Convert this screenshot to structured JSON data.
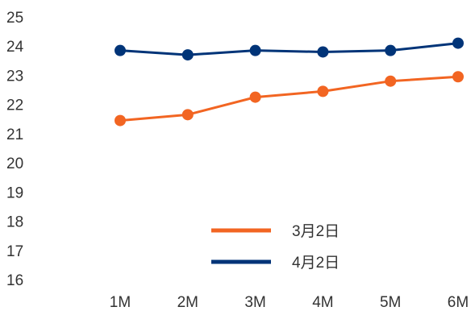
{
  "chart_data": {
    "type": "line",
    "title": "",
    "xlabel": "",
    "ylabel": "",
    "categories": [
      "1M",
      "2M",
      "3M",
      "4M",
      "5M",
      "6M"
    ],
    "y_ticks": [
      16,
      17,
      18,
      19,
      20,
      21,
      22,
      23,
      24,
      25
    ],
    "ylim": [
      16,
      25
    ],
    "grid": false,
    "legend_position": "bottom-center",
    "series": [
      {
        "name": "3月2日",
        "color": "#F26522",
        "values": [
          21.45,
          21.65,
          22.25,
          22.45,
          22.8,
          22.95
        ]
      },
      {
        "name": "4月2日",
        "color": "#003478",
        "values": [
          23.85,
          23.7,
          23.85,
          23.8,
          23.85,
          24.1
        ]
      }
    ]
  }
}
